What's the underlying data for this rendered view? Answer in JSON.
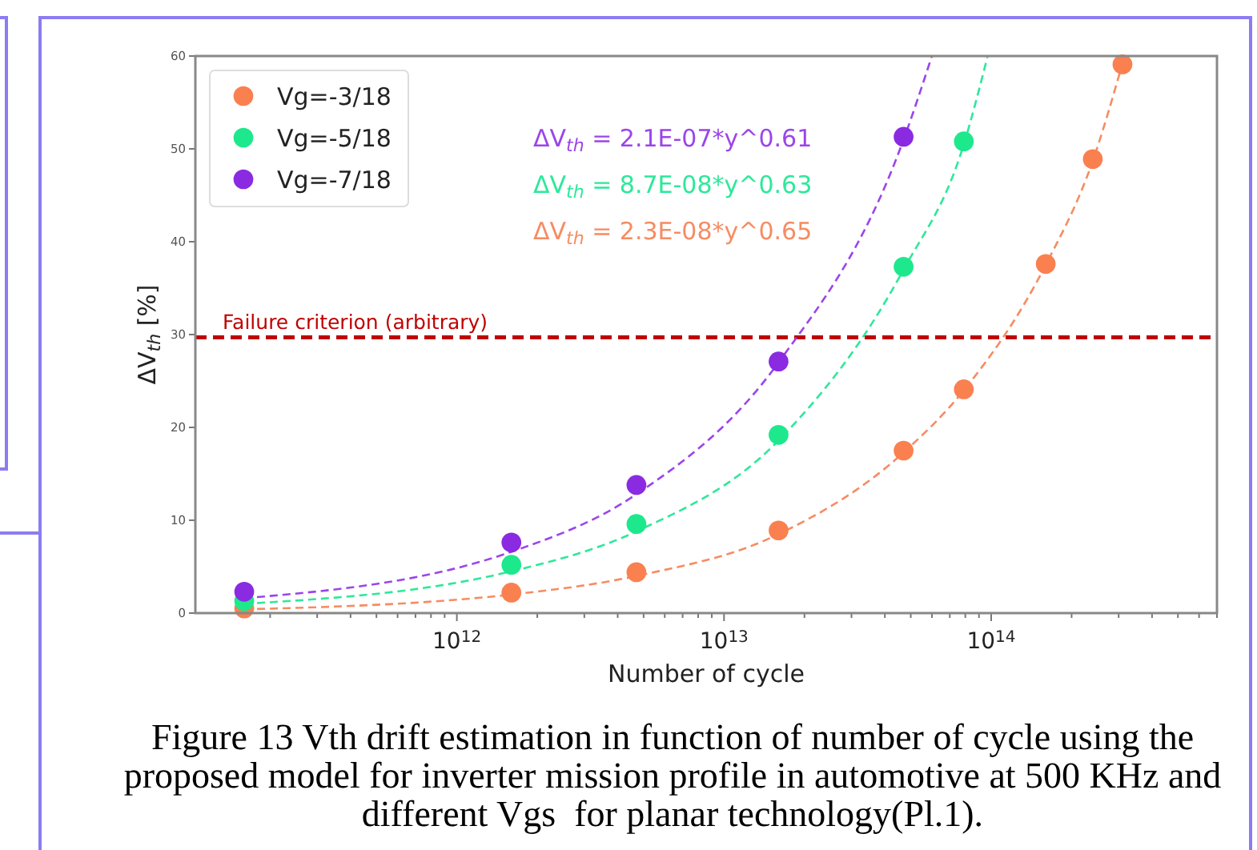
{
  "chart_data": {
    "type": "scatter",
    "xlabel": "Number of cycle",
    "ylabel": "ΔV$_{th}$ [%]",
    "log": "x",
    "xlim": [
      105000000000.0,
      700000000000000.0
    ],
    "ylim": [
      0,
      60
    ],
    "xticks": [
      {
        "value": 200000000000.0,
        "label": null
      },
      {
        "value": 300000000000.0,
        "label": null
      },
      {
        "value": 400000000000.0,
        "label": null
      },
      {
        "value": 500000000000.0,
        "label": null
      },
      {
        "value": 600000000000.0,
        "label": null
      },
      {
        "value": 700000000000.0,
        "label": null
      },
      {
        "value": 800000000000.0,
        "label": null
      },
      {
        "value": 900000000000.0,
        "label": null
      },
      {
        "value": 1000000000000.0,
        "label": "10$^{12}$"
      },
      {
        "value": 2000000000000.0,
        "label": null
      },
      {
        "value": 3000000000000.0,
        "label": null
      },
      {
        "value": 4000000000000.0,
        "label": null
      },
      {
        "value": 5000000000000.0,
        "label": null
      },
      {
        "value": 6000000000000.0,
        "label": null
      },
      {
        "value": 7000000000000.0,
        "label": null
      },
      {
        "value": 8000000000000.0,
        "label": null
      },
      {
        "value": 9000000000000.0,
        "label": null
      },
      {
        "value": 10000000000000.0,
        "label": "10$^{13}$"
      },
      {
        "value": 20000000000000.0,
        "label": null
      },
      {
        "value": 30000000000000.0,
        "label": null
      },
      {
        "value": 40000000000000.0,
        "label": null
      },
      {
        "value": 50000000000000.0,
        "label": null
      },
      {
        "value": 60000000000000.0,
        "label": null
      },
      {
        "value": 70000000000000.0,
        "label": null
      },
      {
        "value": 80000000000000.0,
        "label": null
      },
      {
        "value": 90000000000000.0,
        "label": null
      },
      {
        "value": 100000000000000.0,
        "label": "10$^{14}$"
      },
      {
        "value": 200000000000000.0,
        "label": null
      },
      {
        "value": 300000000000000.0,
        "label": null
      },
      {
        "value": 400000000000000.0,
        "label": null
      },
      {
        "value": 500000000000000.0,
        "label": null
      },
      {
        "value": 600000000000000.0,
        "label": null
      },
      {
        "value": 700000000000000.0,
        "label": null
      }
    ],
    "yticks": [
      0,
      10,
      20,
      30,
      40,
      50,
      60
    ],
    "marker": "circle",
    "legend": "top left",
    "series": [
      {
        "name": "Vg=-3/18",
        "color": "#fa8050",
        "x": [
          160000000000.0,
          1600000000000.0,
          4700000000000.0,
          16000000000000.0,
          47000000000000.0,
          79000000000000.0,
          160000000000000.0,
          240000000000000.0,
          310000000000000.0
        ],
        "values": [
          0.5,
          2.2,
          4.4,
          8.9,
          17.5,
          24.1,
          37.6,
          48.9,
          59.1
        ]
      },
      {
        "name": "Vg=-5/18",
        "color": "#1ee88c",
        "x": [
          160000000000.0,
          1600000000000.0,
          4700000000000.0,
          16000000000000.0,
          47000000000000.0,
          79000000000000.0
        ],
        "values": [
          1.3,
          5.2,
          9.6,
          19.2,
          37.3,
          50.8
        ]
      },
      {
        "name": "Vg=-7/18",
        "color": "#8a2be2",
        "x": [
          160000000000.0,
          1600000000000.0,
          4700000000000.0,
          16000000000000.0,
          47000000000000.0
        ],
        "values": [
          2.3,
          7.6,
          13.8,
          27.1,
          51.3
        ]
      },
      {
        "type": "line",
        "marker": "none",
        "line_style": "dashed",
        "name": "ΔV$_{th}$ = 2.1E-07*y^0.61",
        "color": "#9b45ea",
        "x": [
          160000000000.0,
          1600000000000.0,
          4700000000000.0,
          16000000000000.0,
          47000000000000.0,
          60000000000000.0
        ],
        "values": [
          1.6,
          6.6,
          12.8,
          27.0,
          51.0,
          60
        ]
      },
      {
        "type": "line",
        "marker": "none",
        "line_style": "dashed",
        "name": "ΔV$_{th}$ = 8.7E-08*y^0.63",
        "color": "#2ee89a",
        "x": [
          160000000000.0,
          1600000000000.0,
          4700000000000.0,
          16000000000000.0,
          47000000000000.0,
          79000000000000.0,
          97000000000000.0
        ],
        "values": [
          1.0,
          4.5,
          8.8,
          18.6,
          37.0,
          50.5,
          60
        ]
      },
      {
        "type": "line",
        "marker": "none",
        "line_style": "dashed",
        "name": "ΔV$_{th}$ = 2.3E-08*y^0.65",
        "color": "#f68c62",
        "x": [
          160000000000.0,
          1600000000000.0,
          4700000000000.0,
          16000000000000.0,
          47000000000000.0,
          79000000000000.0,
          160000000000000.0,
          240000000000000.0,
          310000000000000.0
        ],
        "values": [
          0.4,
          2.0,
          4.0,
          8.5,
          17.3,
          24.0,
          37.5,
          48.7,
          59.2
        ]
      }
    ],
    "ref_lines": [
      {
        "axis": "y",
        "value": 29.7,
        "label": "Failure criterion (arbitrary)",
        "color": "#c00000",
        "line_style": "dashed"
      }
    ],
    "annotations": [
      "Figure 13 Vth drift estimation in function of number of cycle using the proposed model for inverter mission profile in automotive at 500 KHz and different Vgs  for planar technology(Pl.1)."
    ]
  }
}
